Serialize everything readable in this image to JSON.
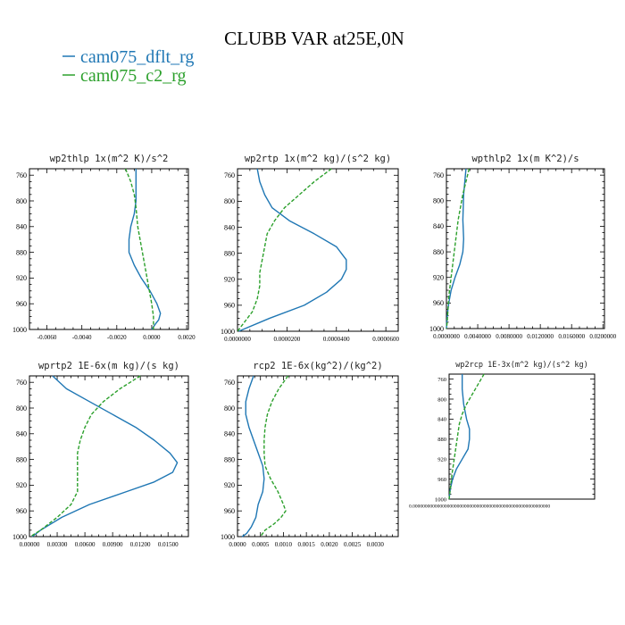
{
  "figure": {
    "title": "CLUBB VAR at25E,0N",
    "legend": [
      {
        "label": "cam075_dflt_rg",
        "color": "#1f77b4"
      },
      {
        "label": "cam075_c2_rg",
        "color": "#2ca02c"
      }
    ]
  },
  "chart_data": [
    {
      "type": "line",
      "title": "wp2thlp   1x(m^2 K)/s^2",
      "xlim": [
        -0.007,
        0.0021
      ],
      "ylim": [
        1000,
        750
      ],
      "xticks": [
        "-0.0060",
        "-0.0040",
        "-0.0020",
        "0.0000",
        "0.0020"
      ],
      "xtick_values": [
        -0.006,
        -0.004,
        -0.002,
        0.0,
        0.002
      ],
      "yticks": [
        760,
        800,
        840,
        880,
        920,
        960,
        1000
      ],
      "series": [
        {
          "color": "#1f77b4",
          "dash": "",
          "y": [
            750,
            780,
            800,
            820,
            840,
            860,
            880,
            900,
            920,
            940,
            960,
            975,
            985,
            992,
            1000
          ],
          "x": [
            -0.0009,
            -0.0009,
            -0.0009,
            -0.001,
            -0.0012,
            -0.0013,
            -0.0013,
            -0.001,
            -0.0006,
            -0.0001,
            0.0003,
            0.0005,
            0.0004,
            0.0002,
            0.0
          ]
        },
        {
          "color": "#2ca02c",
          "dash": "4,2",
          "y": [
            750,
            770,
            790,
            810,
            840,
            870,
            900,
            930,
            960,
            980,
            1000
          ],
          "x": [
            -0.0015,
            -0.0012,
            -0.001,
            -0.0009,
            -0.0008,
            -0.0006,
            -0.0004,
            -0.0002,
            0.0,
            0.0001,
            0.0001
          ]
        }
      ]
    },
    {
      "type": "line",
      "title": "wp2rtp   1x(m^2 kg)/(s^2 kg)",
      "xlim": [
        0,
        6.5e-05
      ],
      "ylim": [
        1000,
        750
      ],
      "xticks": [
        "0.0000000",
        "0.0000200",
        "0.0000400",
        "0.0000600"
      ],
      "xtick_values": [
        0,
        2e-05,
        4e-05,
        6e-05
      ],
      "yticks": [
        760,
        800,
        840,
        880,
        920,
        960,
        1000
      ],
      "series": [
        {
          "color": "#1f77b4",
          "dash": "",
          "y": [
            750,
            770,
            790,
            810,
            830,
            850,
            870,
            890,
            905,
            920,
            940,
            960,
            980,
            1000
          ],
          "x": [
            8e-06,
            9e-06,
            1.1e-05,
            1.4e-05,
            2.1e-05,
            3.1e-05,
            4e-05,
            4.4e-05,
            4.4e-05,
            4.2e-05,
            3.6e-05,
            2.7e-05,
            1.3e-05,
            5e-07
          ]
        },
        {
          "color": "#2ca02c",
          "dash": "4,2",
          "y": [
            750,
            770,
            790,
            810,
            830,
            850,
            870,
            890,
            910,
            930,
            950,
            970,
            990,
            1000
          ],
          "x": [
            3.8e-05,
            3.1e-05,
            2.5e-05,
            1.9e-05,
            1.5e-05,
            1.2e-05,
            1.1e-05,
            1e-05,
            9e-06,
            9e-06,
            8e-06,
            6e-06,
            2e-06,
            0.0
          ]
        }
      ]
    },
    {
      "type": "line",
      "title": "wpthlp2   1x(m K^2)/s",
      "xlim": [
        0,
        0.0202
      ],
      "ylim": [
        1000,
        750
      ],
      "xticks": [
        "0.0000000",
        "0.0040000",
        "0.0080000",
        "0.0120000",
        "0.0160000",
        "0.0200000"
      ],
      "xtick_values": [
        0,
        0.004,
        0.008,
        0.012,
        0.016,
        0.02
      ],
      "yticks": [
        760,
        800,
        840,
        880,
        920,
        960,
        1000
      ],
      "series": [
        {
          "color": "#1f77b4",
          "dash": "",
          "y": [
            750,
            790,
            830,
            860,
            880,
            900,
            920,
            940,
            960,
            980,
            1000
          ],
          "x": [
            0.0025,
            0.0022,
            0.0021,
            0.0022,
            0.0021,
            0.0017,
            0.0011,
            0.0006,
            0.0003,
            0.0001,
            0.0
          ]
        },
        {
          "color": "#2ca02c",
          "dash": "4,2",
          "y": [
            750,
            770,
            790,
            810,
            830,
            850,
            870,
            890,
            910,
            930,
            950,
            970,
            990,
            1000
          ],
          "x": [
            0.0029,
            0.0025,
            0.0021,
            0.0018,
            0.0015,
            0.0013,
            0.0011,
            0.0009,
            0.0007,
            0.0005,
            0.0003,
            0.0002,
            0.0001,
            0.0
          ]
        }
      ]
    },
    {
      "type": "line",
      "title": "wprtp2   1E-6x(m kg)/(s kg)",
      "xlim": [
        0,
        0.0172
      ],
      "ylim": [
        1000,
        750
      ],
      "xticks": [
        "0.00000",
        "0.00300",
        "0.00600",
        "0.00900",
        "0.01200",
        "0.01500"
      ],
      "xtick_values": [
        0,
        0.003,
        0.006,
        0.009,
        0.012,
        0.015
      ],
      "yticks": [
        760,
        800,
        840,
        880,
        920,
        960,
        1000
      ],
      "series": [
        {
          "color": "#1f77b4",
          "dash": "",
          "y": [
            750,
            770,
            790,
            810,
            830,
            850,
            870,
            885,
            900,
            915,
            930,
            950,
            970,
            990,
            1000
          ],
          "x": [
            0.0025,
            0.004,
            0.0065,
            0.009,
            0.0115,
            0.0135,
            0.0152,
            0.016,
            0.0155,
            0.0135,
            0.0105,
            0.0065,
            0.0035,
            0.0012,
            0.0003
          ]
        },
        {
          "color": "#2ca02c",
          "dash": "4,2",
          "y": [
            750,
            770,
            790,
            810,
            830,
            850,
            870,
            890,
            910,
            930,
            950,
            970,
            990,
            1000
          ],
          "x": [
            0.012,
            0.0098,
            0.008,
            0.0067,
            0.006,
            0.0055,
            0.0052,
            0.0052,
            0.0052,
            0.0052,
            0.0045,
            0.003,
            0.0012,
            0.0001
          ]
        }
      ]
    },
    {
      "type": "line",
      "title": "rcp2   1E-6x(kg^2)/(kg^2)",
      "xlim": [
        0,
        0.0035
      ],
      "ylim": [
        1000,
        750
      ],
      "xticks": [
        "0.0000",
        "0.0005",
        "0.0010",
        "0.0015",
        "0.0020",
        "0.0025",
        "0.0030"
      ],
      "xtick_values": [
        0,
        0.0005,
        0.001,
        0.0015,
        0.002,
        0.0025,
        0.003
      ],
      "yticks": [
        760,
        800,
        840,
        880,
        920,
        960,
        1000
      ],
      "series": [
        {
          "color": "#1f77b4",
          "dash": "",
          "y": [
            750,
            770,
            790,
            810,
            830,
            850,
            870,
            890,
            910,
            930,
            950,
            970,
            985,
            995,
            1000
          ],
          "x": [
            0.00035,
            0.00025,
            0.00018,
            0.00018,
            0.00025,
            0.00035,
            0.00045,
            0.00055,
            0.00058,
            0.00055,
            0.00045,
            0.0004,
            0.0003,
            0.0002,
            0.0001
          ]
        },
        {
          "color": "#2ca02c",
          "dash": "4,2",
          "y": [
            750,
            770,
            790,
            810,
            830,
            850,
            870,
            890,
            910,
            930,
            950,
            960,
            970,
            980,
            990,
            1000
          ],
          "x": [
            0.0011,
            0.0009,
            0.00075,
            0.00065,
            0.0006,
            0.00058,
            0.00058,
            0.0006,
            0.00072,
            0.00088,
            0.001,
            0.00105,
            0.00095,
            0.0008,
            0.0006,
            0.0005
          ]
        }
      ]
    },
    {
      "type": "line",
      "title": "wp2rcp   1E-3x(m^2 kg)/(s^2 kg)",
      "xlim": [
        0,
        0.5
      ],
      "ylim": [
        1000,
        750
      ],
      "xticks": [
        "0.00000000000000000000000000000000000000000000000000000000"
      ],
      "xtick_values": [
        0
      ],
      "yticks": [
        760,
        800,
        840,
        880,
        920,
        960,
        1000
      ],
      "series": [
        {
          "color": "#1f77b4",
          "dash": "",
          "y": [
            750,
            780,
            810,
            840,
            860,
            880,
            900,
            920,
            940,
            960,
            980,
            1000
          ],
          "x": [
            0.045,
            0.045,
            0.05,
            0.06,
            0.07,
            0.07,
            0.065,
            0.045,
            0.025,
            0.012,
            0.004,
            0.0
          ]
        },
        {
          "color": "#2ca02c",
          "dash": "4,2",
          "y": [
            750,
            770,
            790,
            810,
            830,
            850,
            870,
            890,
            910,
            930,
            950,
            970,
            990,
            1000
          ],
          "x": [
            0.12,
            0.1,
            0.08,
            0.06,
            0.045,
            0.035,
            0.03,
            0.025,
            0.02,
            0.015,
            0.01,
            0.006,
            0.002,
            0.0
          ]
        }
      ]
    }
  ]
}
